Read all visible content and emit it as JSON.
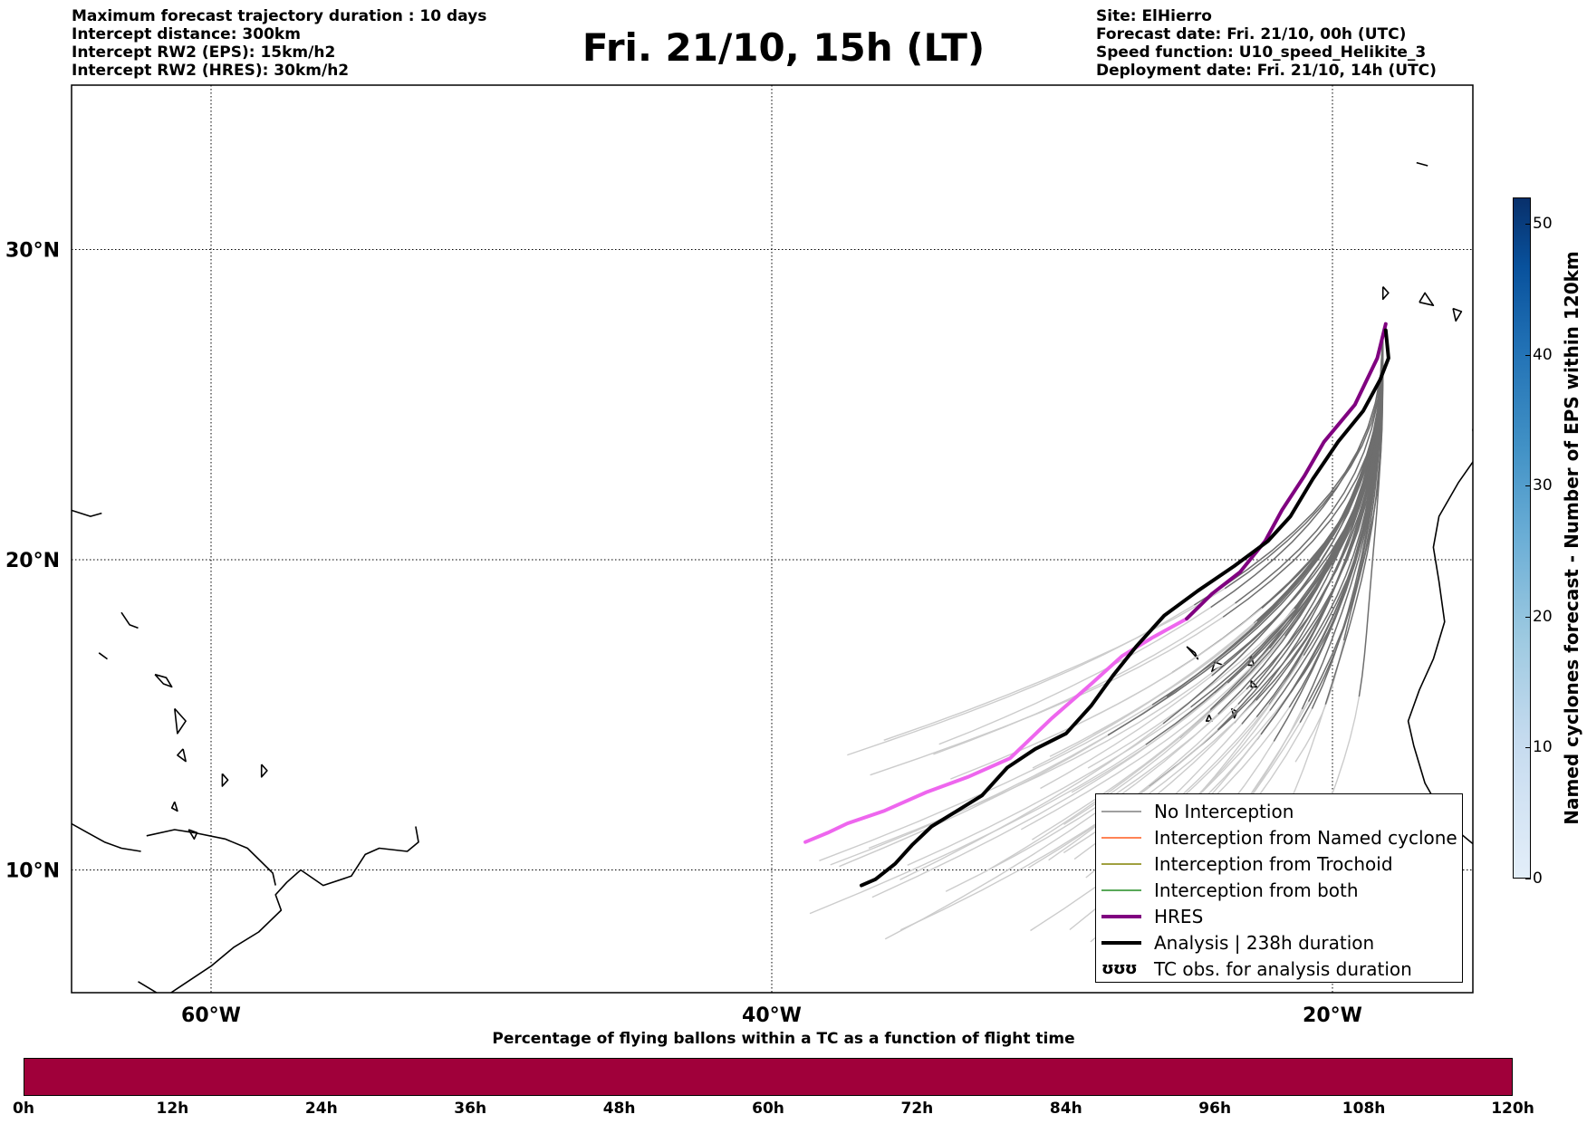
{
  "header_left": [
    "Maximum forecast trajectory duration : 10 days",
    "Intercept distance: 300km",
    "Intercept RW2 (EPS):  15km/h2",
    "Intercept RW2 (HRES): 30km/h2"
  ],
  "title": "Fri. 21/10, 15h (LT)",
  "header_right": [
    "Site: ElHierro",
    "Forecast date: Fri. 21/10, 00h (UTC)",
    "Speed function: U10_speed_Helikite_3",
    "Deployment date: Fri. 21/10, 14h (UTC)"
  ],
  "map": {
    "lon_range": [
      -65,
      15
    ],
    "lat_range": [
      5,
      34.3
    ],
    "lat_labels": [
      {
        "lat": 30,
        "text": "30°N"
      },
      {
        "lat": 20,
        "text": "20°N"
      },
      {
        "lat": 10,
        "text": "10°N"
      }
    ],
    "lon_labels": [
      {
        "lon": -60,
        "text": "60°W"
      },
      {
        "lon": -40,
        "text": "40°W"
      },
      {
        "lon": -20,
        "text": "20°W"
      }
    ],
    "colors": {
      "hres": "#800080",
      "hres_far": "#ee66ee",
      "analysis": "#000000",
      "no_interception_near": "#6e6e6e",
      "no_interception_far": "#cccccc"
    },
    "hres_track": [
      [
        -18.1,
        27.6
      ],
      [
        -18.4,
        26.5
      ],
      [
        -19.2,
        25.0
      ],
      [
        -20.3,
        23.8
      ],
      [
        -21.0,
        22.7
      ],
      [
        -21.8,
        21.6
      ],
      [
        -22.4,
        20.6
      ],
      [
        -23.3,
        19.6
      ],
      [
        -24.3,
        18.9
      ],
      [
        -25.2,
        18.1
      ],
      [
        -26.4,
        17.5
      ],
      [
        -27.5,
        16.9
      ],
      [
        -28.6,
        16.0
      ],
      [
        -30.0,
        14.9
      ],
      [
        -31.5,
        13.6
      ],
      [
        -33.0,
        13.0
      ],
      [
        -34.5,
        12.5
      ],
      [
        -36.0,
        11.9
      ],
      [
        -37.3,
        11.5
      ],
      [
        -38.0,
        11.2
      ],
      [
        -38.8,
        10.9
      ]
    ],
    "hres_color_split_index": 9,
    "analysis_track": [
      [
        -18.1,
        27.4
      ],
      [
        -18.0,
        26.5
      ],
      [
        -18.3,
        25.8
      ],
      [
        -18.9,
        24.8
      ],
      [
        -19.8,
        23.8
      ],
      [
        -20.7,
        22.6
      ],
      [
        -21.5,
        21.4
      ],
      [
        -22.3,
        20.6
      ],
      [
        -23.5,
        19.8
      ],
      [
        -24.8,
        19.0
      ],
      [
        -26.0,
        18.2
      ],
      [
        -27.0,
        17.2
      ],
      [
        -27.8,
        16.3
      ],
      [
        -28.6,
        15.3
      ],
      [
        -29.5,
        14.4
      ],
      [
        -30.6,
        13.9
      ],
      [
        -31.6,
        13.3
      ],
      [
        -32.5,
        12.4
      ],
      [
        -33.4,
        11.9
      ],
      [
        -34.3,
        11.4
      ],
      [
        -35.0,
        10.8
      ],
      [
        -35.6,
        10.2
      ],
      [
        -36.3,
        9.7
      ],
      [
        -36.8,
        9.5
      ]
    ],
    "coastlines": [
      [
        [
          -65,
          5.1
        ],
        [
          -62,
          5.7
        ],
        [
          -61,
          6.3
        ],
        [
          -60,
          6.9
        ],
        [
          -59.2,
          7.5
        ],
        [
          -58.3,
          8.0
        ],
        [
          -57.5,
          8.7
        ],
        [
          -57.7,
          9.2
        ],
        [
          -57.3,
          9.6
        ],
        [
          -56.8,
          10.0
        ],
        [
          -56,
          9.5
        ],
        [
          -55,
          9.8
        ],
        [
          -54.5,
          10.5
        ],
        [
          -54,
          10.7
        ],
        [
          -53,
          10.6
        ],
        [
          -52.6,
          10.9
        ],
        [
          -52.7,
          11.4
        ]
      ],
      [
        [
          -62.3,
          11.1
        ],
        [
          -61.3,
          11.3
        ],
        [
          -60.6,
          11.2
        ],
        [
          -59.5,
          11.0
        ],
        [
          -58.7,
          10.7
        ],
        [
          -57.8,
          9.9
        ],
        [
          -57.7,
          9.5
        ]
      ],
      [
        [
          -60.2,
          5.3
        ],
        [
          -61.5,
          5.8
        ],
        [
          -62.6,
          6.4
        ]
      ],
      [
        [
          -65,
          21.6
        ],
        [
          -64.3,
          21.4
        ],
        [
          -63.9,
          21.5
        ]
      ],
      [
        [
          -63.2,
          18.3
        ],
        [
          -62.9,
          17.9
        ],
        [
          -62.6,
          17.8
        ]
      ],
      [
        [
          -62.0,
          16.3
        ],
        [
          -61.7,
          16.0
        ],
        [
          -61.4,
          15.9
        ],
        [
          -61.6,
          16.2
        ],
        [
          -62.0,
          16.3
        ]
      ],
      [
        [
          -61.3,
          15.2
        ],
        [
          -60.9,
          14.8
        ],
        [
          -61.2,
          14.4
        ],
        [
          -61.3,
          15.2
        ]
      ],
      [
        [
          -61.0,
          13.9
        ],
        [
          -60.9,
          13.5
        ],
        [
          -61.2,
          13.7
        ],
        [
          -61.0,
          13.9
        ]
      ],
      [
        [
          -59.6,
          13.1
        ],
        [
          -59.4,
          12.9
        ],
        [
          -59.6,
          12.7
        ],
        [
          -59.6,
          13.1
        ]
      ],
      [
        [
          -61.3,
          12.2
        ],
        [
          -61.2,
          11.9
        ],
        [
          -61.4,
          12.0
        ],
        [
          -61.3,
          12.2
        ]
      ],
      [
        [
          -60.8,
          11.3
        ],
        [
          -60.5,
          11.2
        ],
        [
          -60.6,
          11.0
        ],
        [
          -60.8,
          11.3
        ]
      ],
      [
        [
          -65.0,
          11.5
        ],
        [
          -64.4,
          11.2
        ],
        [
          -63.8,
          10.9
        ],
        [
          -63.2,
          10.7
        ],
        [
          -62.5,
          10.6
        ]
      ],
      [
        [
          -64.0,
          17.0
        ],
        [
          -63.7,
          16.8
        ]
      ],
      [
        [
          -58.2,
          13.4
        ],
        [
          -58.0,
          13.2
        ],
        [
          -58.2,
          13.0
        ],
        [
          -58.2,
          13.4
        ]
      ],
      [
        [
          -14.4,
          33.1
        ],
        [
          -14.1,
          33.0
        ],
        [
          -13.8,
          32.9
        ]
      ],
      [
        [
          -17.0,
          32.8
        ],
        [
          -16.6,
          32.7
        ]
      ],
      [
        [
          -14.1,
          32.9
        ],
        [
          -13.3,
          32.6
        ]
      ],
      [
        [
          -18.2,
          28.8
        ],
        [
          -18.0,
          28.6
        ],
        [
          -18.2,
          28.4
        ],
        [
          -18.2,
          28.8
        ]
      ],
      [
        [
          -16.9,
          28.3
        ],
        [
          -16.4,
          28.2
        ],
        [
          -16.7,
          28.6
        ],
        [
          -16.9,
          28.3
        ]
      ],
      [
        [
          -15.7,
          28.1
        ],
        [
          -15.4,
          28.0
        ],
        [
          -15.6,
          27.7
        ],
        [
          -15.7,
          28.1
        ]
      ],
      [
        [
          -14.5,
          28.7
        ],
        [
          -13.8,
          28.5
        ],
        [
          -14.2,
          28.2
        ],
        [
          -14.5,
          28.7
        ]
      ],
      [
        [
          -13.5,
          29.2
        ],
        [
          -13.3,
          29.0
        ],
        [
          -13.6,
          28.9
        ],
        [
          -13.5,
          29.2
        ]
      ],
      [
        [
          -15.0,
          24.2
        ],
        [
          -14.8,
          23.4
        ],
        [
          -15.5,
          22.5
        ],
        [
          -16.2,
          21.4
        ],
        [
          -16.4,
          20.4
        ],
        [
          -16.2,
          19.3
        ],
        [
          -16.0,
          18.0
        ],
        [
          -16.4,
          16.8
        ],
        [
          -16.9,
          15.8
        ],
        [
          -17.3,
          14.8
        ],
        [
          -17.1,
          14.0
        ],
        [
          -16.7,
          12.8
        ],
        [
          -16.2,
          12.0
        ],
        [
          -15.6,
          11.3
        ],
        [
          -14.8,
          10.7
        ],
        [
          -14.3,
          10.2
        ]
      ],
      [
        [
          -15.0,
          24.2
        ],
        [
          -14.3,
          25.0
        ],
        [
          -13.5,
          25.5
        ],
        [
          -13.0,
          26.0
        ],
        [
          -12.0,
          26.8
        ]
      ],
      [
        [
          -25.2,
          17.2
        ],
        [
          -24.9,
          17.0
        ],
        [
          -24.8,
          16.8
        ],
        [
          -25.2,
          17.2
        ]
      ],
      [
        [
          -24.2,
          16.7
        ],
        [
          -23.9,
          16.6
        ],
        [
          -24.3,
          16.4
        ],
        [
          -24.2,
          16.7
        ]
      ],
      [
        [
          -22.9,
          16.9
        ],
        [
          -22.8,
          16.6
        ],
        [
          -23.0,
          16.6
        ],
        [
          -22.9,
          16.9
        ]
      ],
      [
        [
          -23.6,
          15.2
        ],
        [
          -23.4,
          15.1
        ],
        [
          -23.5,
          14.9
        ],
        [
          -23.6,
          15.2
        ]
      ],
      [
        [
          -24.4,
          15.0
        ],
        [
          -24.3,
          14.8
        ],
        [
          -24.5,
          14.8
        ],
        [
          -24.4,
          15.0
        ]
      ],
      [
        [
          -22.9,
          16.1
        ],
        [
          -22.7,
          15.9
        ],
        [
          -22.9,
          15.9
        ],
        [
          -22.9,
          16.1
        ]
      ]
    ]
  },
  "legend": {
    "items": [
      {
        "label": "No Interception",
        "color": "#808080",
        "width": 1.5
      },
      {
        "label": "Interception from Named cyclone",
        "color": "#ff5a1e",
        "width": 1.5
      },
      {
        "label": "Interception from Trochoid",
        "color": "#808000",
        "width": 1.5
      },
      {
        "label": "Interception from both",
        "color": "#228b22",
        "width": 1.5
      },
      {
        "label": "HRES",
        "color": "#800080",
        "width": 4
      },
      {
        "label": "Analysis | 238h duration",
        "color": "#000000",
        "width": 4
      }
    ],
    "tc_glyph": "ʊʊʊ",
    "tc_label": "TC obs. for analysis duration"
  },
  "pct_title": "Percentage of flying ballons within a TC as a function of flight time",
  "pct_values_constant": 0,
  "pct_bar_color": "#a0003a",
  "time_labels": [
    "0h",
    "12h",
    "24h",
    "36h",
    "48h",
    "60h",
    "72h",
    "84h",
    "96h",
    "108h",
    "120h"
  ],
  "colorbar": {
    "title": "Named cyclones forecast - Number of EPS within 120km",
    "range": [
      0,
      52
    ],
    "ticks": [
      0,
      10,
      20,
      30,
      40,
      50
    ]
  }
}
